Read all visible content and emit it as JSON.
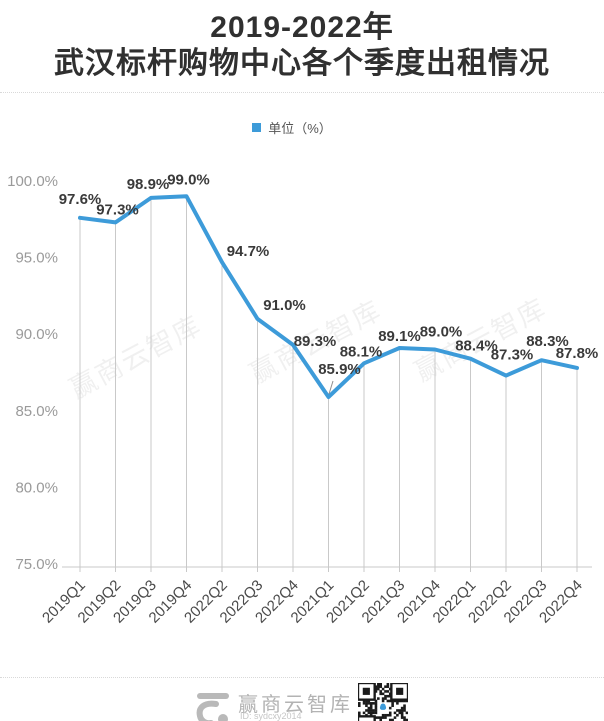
{
  "title": {
    "line1": "2019-2022年",
    "line2": "武汉标杆购物中心各个季度出租情况"
  },
  "legend": {
    "label": "单位（%）",
    "color": "#3D9BD9"
  },
  "chart_data": {
    "type": "line",
    "title": "2019-2022年 武汉标杆购物中心各个季度出租情况",
    "categories": [
      "2019Q1",
      "2019Q2",
      "2019Q3",
      "2019Q4",
      "2022Q2",
      "2022Q3",
      "2022Q4",
      "2021Q1",
      "2021Q2",
      "2021Q3",
      "2021Q4",
      "2022Q1",
      "2022Q2",
      "2022Q3",
      "2022Q4"
    ],
    "values": [
      97.6,
      97.3,
      98.9,
      99.0,
      94.7,
      91.0,
      89.3,
      85.9,
      88.1,
      89.1,
      89.0,
      88.4,
      87.3,
      88.3,
      87.8
    ],
    "unit": "%",
    "ylim": [
      75.0,
      100.0
    ],
    "ytick_step": 5.0,
    "ytick_labels": [
      "100.0%",
      "95.0%",
      "90.0%",
      "85.0%",
      "80.0%",
      "75.0%"
    ],
    "legend_entries": [
      "单位（%）"
    ],
    "legend_position": "top",
    "grid": "vertical-droplines-only",
    "line_color": "#3D9BD9",
    "xlabel": "",
    "ylabel": ""
  },
  "watermark": {
    "text": "赢商云智库"
  },
  "footer": {
    "brand": "赢商云智库",
    "id_text": "ID: sydcxy2014"
  }
}
